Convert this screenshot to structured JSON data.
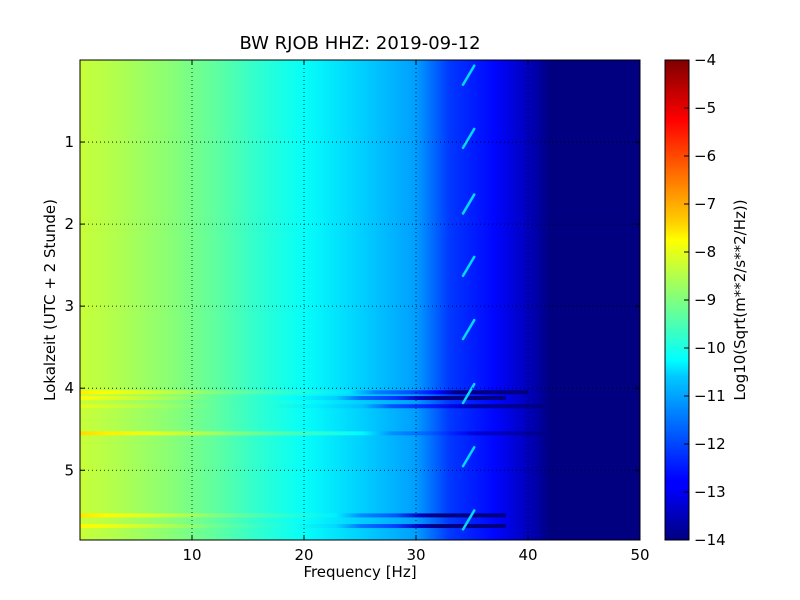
{
  "chart_data": {
    "type": "heatmap",
    "title": "BW RJOB HHZ: 2019-09-12",
    "xlabel": "Frequency [Hz]",
    "ylabel": "Lokalzeit (UTC + 2 Stunde)",
    "colorbar_label": "Log10(Sqrt(m**2/s**2/Hz))",
    "xlim": [
      0,
      50
    ],
    "ylim": [
      5.85,
      0
    ],
    "clim": [
      -14,
      -4
    ],
    "colormap": "jet",
    "grid": true,
    "x_ticks": [
      {
        "value": 10,
        "label": "10"
      },
      {
        "value": 20,
        "label": "20"
      },
      {
        "value": 30,
        "label": "30"
      },
      {
        "value": 40,
        "label": "40"
      },
      {
        "value": 50,
        "label": "50"
      }
    ],
    "y_ticks": [
      {
        "value": 1,
        "label": "1"
      },
      {
        "value": 2,
        "label": "2"
      },
      {
        "value": 3,
        "label": "3"
      },
      {
        "value": 4,
        "label": "4"
      },
      {
        "value": 5,
        "label": "5"
      }
    ],
    "colorbar_ticks": [
      {
        "value": -4,
        "label": "−4"
      },
      {
        "value": -5,
        "label": "−5"
      },
      {
        "value": -6,
        "label": "−6"
      },
      {
        "value": -7,
        "label": "−7"
      },
      {
        "value": -8,
        "label": "−8"
      },
      {
        "value": -9,
        "label": "−9"
      },
      {
        "value": -10,
        "label": "−10"
      },
      {
        "value": -11,
        "label": "−11"
      },
      {
        "value": -12,
        "label": "−12"
      },
      {
        "value": -13,
        "label": "−13"
      },
      {
        "value": -14,
        "label": "−14"
      }
    ],
    "frequency_profile": [
      [
        0,
        -8.3
      ],
      [
        3,
        -8.5
      ],
      [
        8,
        -8.9
      ],
      [
        12,
        -9.3
      ],
      [
        16,
        -9.8
      ],
      [
        20,
        -10.2
      ],
      [
        25,
        -10.7
      ],
      [
        30,
        -11.2
      ],
      [
        33,
        -12.2
      ],
      [
        37,
        -12.7
      ],
      [
        40,
        -13.4
      ],
      [
        42,
        -14.0
      ],
      [
        50,
        -14.0
      ]
    ],
    "events": [
      {
        "time": 4.05,
        "f_max": 40,
        "level_offset": 0.7
      },
      {
        "time": 4.12,
        "f_max": 38,
        "level_offset": 0.5
      },
      {
        "time": 4.22,
        "f_max": 42,
        "level_offset": 0.3
      },
      {
        "time": 4.55,
        "f_max": 42,
        "level_offset": 0.9
      },
      {
        "time": 5.55,
        "f_max": 38,
        "level_offset": 0.8
      },
      {
        "time": 5.68,
        "f_max": 38,
        "level_offset": 0.6
      }
    ],
    "periodic_signal": {
      "f_start": 34.2,
      "f_end": 35.2,
      "times": [
        0.15,
        0.92,
        1.72,
        2.48,
        3.25,
        4.03,
        4.8,
        5.57
      ]
    }
  }
}
